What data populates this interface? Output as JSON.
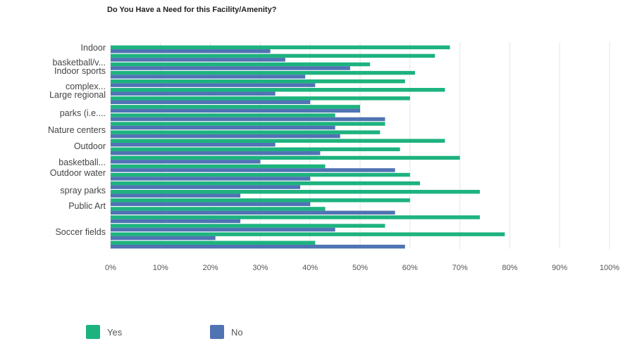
{
  "chart_data": {
    "type": "bar",
    "orientation": "horizontal",
    "title": "Do You Have a Need for this Facility/Amenity?",
    "category_labels_shown": [
      "Indoor",
      "basketball/v...",
      "Indoor sports",
      "complex...",
      "Large regional",
      "parks (i.e....",
      "Nature centers",
      "Outdoor",
      "basketball...",
      "Outdoor water",
      "spray parks",
      "Public Art",
      "Soccer fields"
    ],
    "x_ticks": [
      "0%",
      "10%",
      "20%",
      "30%",
      "40%",
      "50%",
      "60%",
      "70%",
      "80%",
      "90%",
      "100%"
    ],
    "xlim": [
      0,
      100
    ],
    "grid": true,
    "legend_position": "bottom-left",
    "series": [
      {
        "name": "Yes",
        "color": "#1db37e",
        "values": [
          68,
          65,
          52,
          61,
          59,
          67,
          60,
          50,
          45,
          55,
          54,
          67,
          58,
          70,
          43,
          60,
          62,
          74,
          60,
          43,
          74,
          55,
          79,
          41
        ]
      },
      {
        "name": "No",
        "color": "#4f73b3",
        "values": [
          32,
          35,
          48,
          39,
          41,
          33,
          40,
          50,
          55,
          45,
          46,
          33,
          42,
          30,
          57,
          40,
          38,
          26,
          40,
          57,
          26,
          45,
          21,
          59
        ]
      }
    ]
  },
  "legend": {
    "yes_label": "Yes",
    "no_label": "No"
  }
}
